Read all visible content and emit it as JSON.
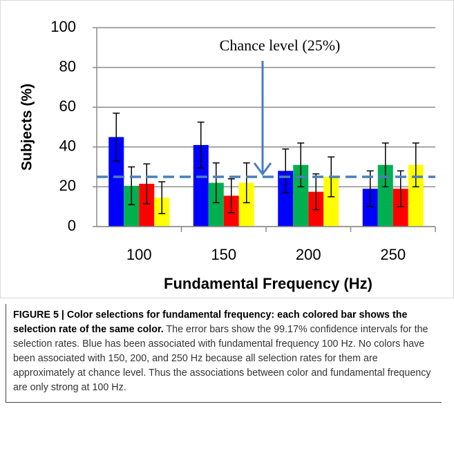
{
  "chart_data": {
    "type": "bar",
    "y_label": "Subjects (%)",
    "x_label": "Fundamental Frequency (Hz)",
    "categories": [
      "100",
      "150",
      "200",
      "250"
    ],
    "series": [
      {
        "color": "#0000ff",
        "values": [
          45,
          41,
          28,
          19
        ],
        "errors": [
          12,
          11.5,
          11,
          9
        ]
      },
      {
        "color": "#00b050",
        "values": [
          20.5,
          22,
          31,
          31
        ],
        "errors": [
          9.5,
          10,
          11,
          11
        ]
      },
      {
        "color": "#ff0000",
        "values": [
          21.5,
          15.5,
          17.5,
          19
        ],
        "errors": [
          10,
          8.5,
          9,
          9
        ]
      },
      {
        "color": "#ffff00",
        "values": [
          14.5,
          22,
          25,
          31
        ],
        "errors": [
          8,
          10,
          10,
          11
        ]
      }
    ],
    "ylim": [
      0,
      100
    ],
    "yticks": [
      0,
      20,
      40,
      60,
      80,
      100
    ],
    "grid": true,
    "chance_level": 25,
    "annotation": "Chance level (25%)"
  },
  "caption": {
    "label": "FIGURE 5 | Color selections for fundamental frequency: each colored bar shows the selection rate of the same color.",
    "text": "The error bars show the 99.17% confidence intervals for the selection rates. Blue has been associated with fundamental frequency 100 Hz. No colors have been associated with 150, 200, and 250 Hz because all selection rates for them are approximately at chance level. Thus the associations between color and fundamental frequency are only strong at 100 Hz."
  }
}
